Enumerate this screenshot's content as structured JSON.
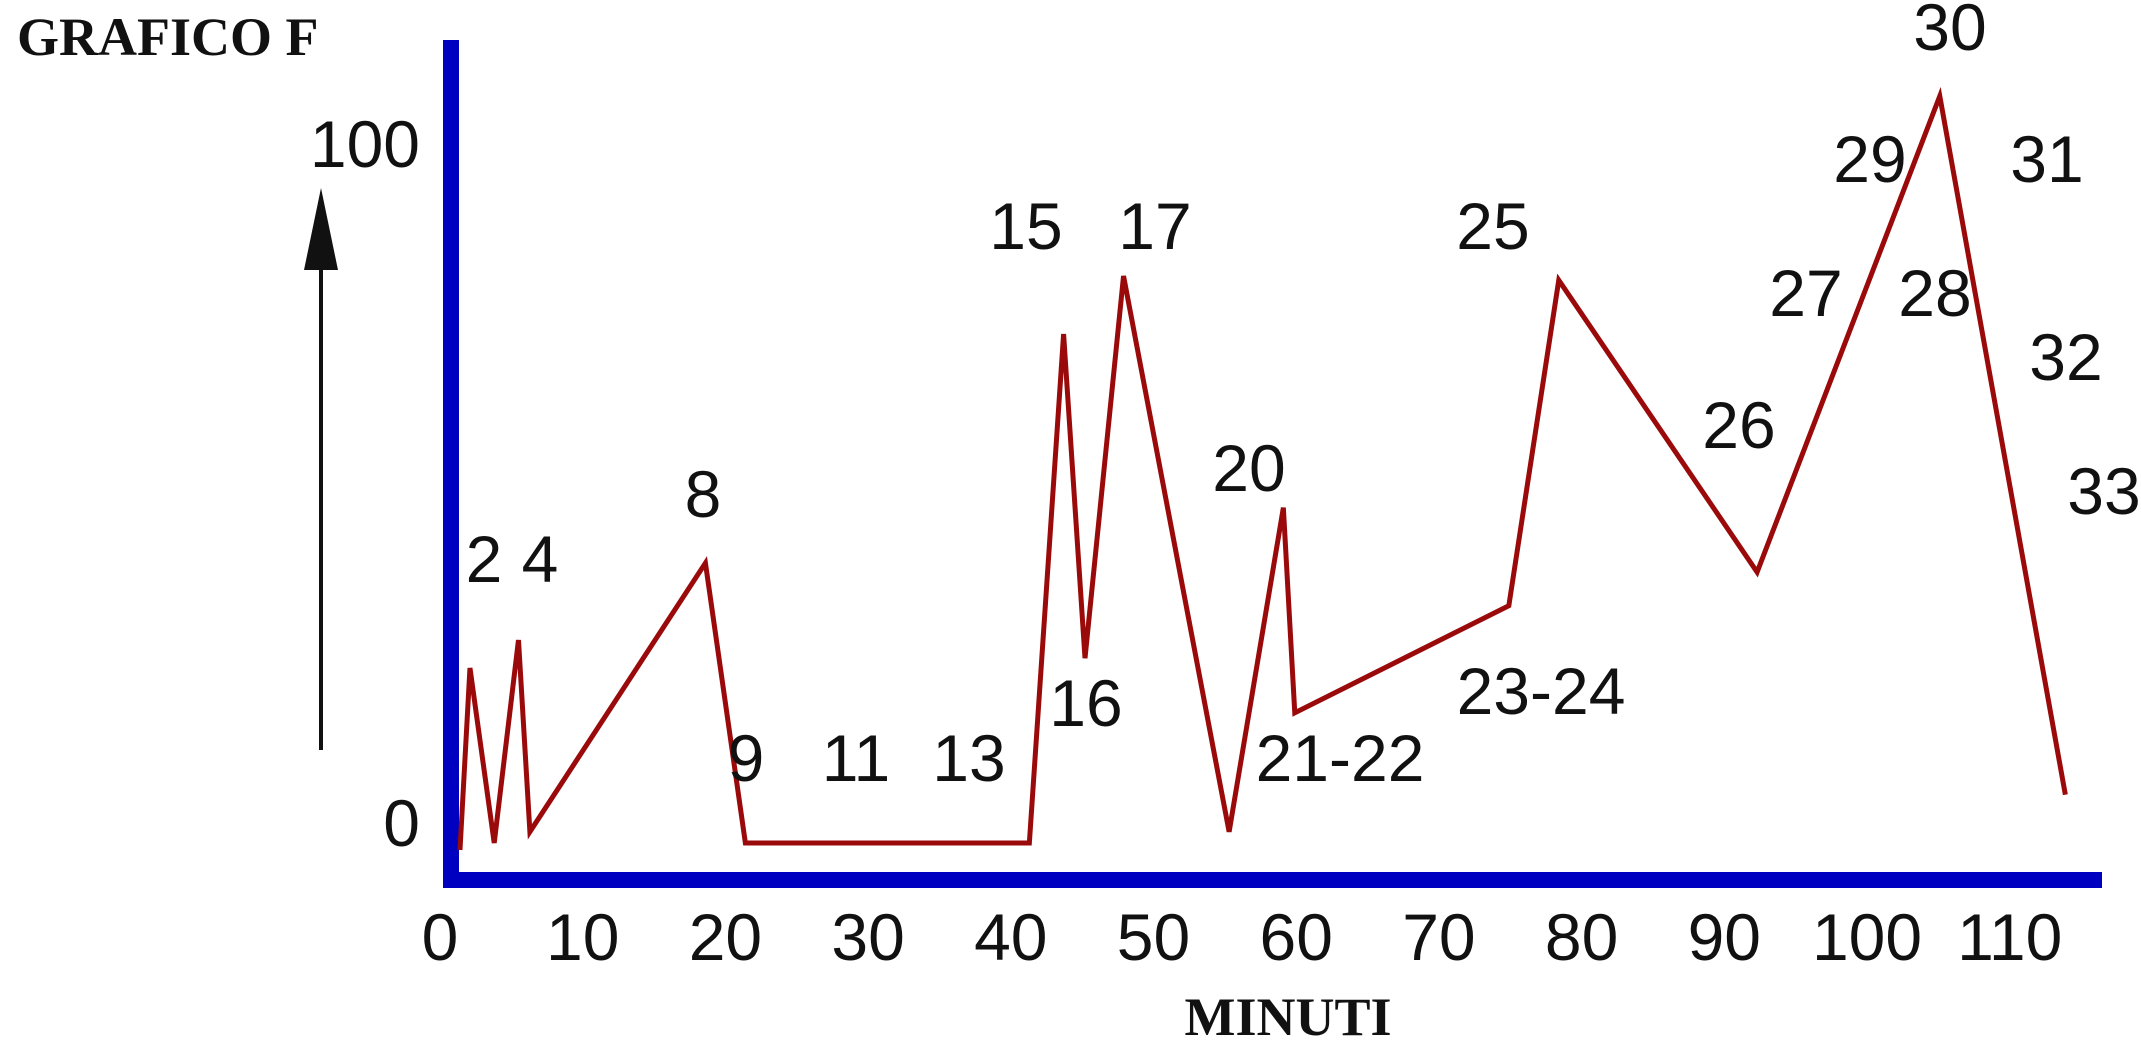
{
  "chart_data": {
    "type": "line",
    "title": "GRAFICO F",
    "xlabel": "MINUTI",
    "ylabel": "",
    "xlim": [
      0,
      115
    ],
    "ylim": [
      0,
      110
    ],
    "x_ticks": [
      0,
      10,
      20,
      30,
      40,
      50,
      60,
      70,
      80,
      90,
      100,
      110
    ],
    "y_ticks": [
      0,
      100
    ],
    "y_arrow": "up",
    "grid": false,
    "colors": {
      "axes": "#0000c0",
      "line": "#9b0a0a",
      "text": "#111111"
    },
    "series": [
      {
        "x": [
          1.4,
          2.1,
          3.8,
          5.5,
          6.3,
          18.6,
          21.4,
          41.3,
          43.7,
          45.2,
          47.9,
          55.3,
          59.1,
          59.9,
          74.9,
          78.4,
          92.3,
          105.1,
          113.9
        ],
        "y": [
          -1,
          25,
          0,
          29,
          1.6,
          40,
          0,
          0,
          72.7,
          26.4,
          81,
          1.6,
          47.9,
          18.6,
          33.9,
          80.4,
          38.7,
          106.7,
          6.9
        ]
      }
    ],
    "annotations": [
      "2",
      "4",
      "8",
      "9",
      "11",
      "13",
      "15",
      "16",
      "17",
      "20",
      "21-22",
      "23-24",
      "25",
      "26",
      "27",
      "28",
      "29",
      "30",
      "31",
      "32",
      "33"
    ]
  }
}
